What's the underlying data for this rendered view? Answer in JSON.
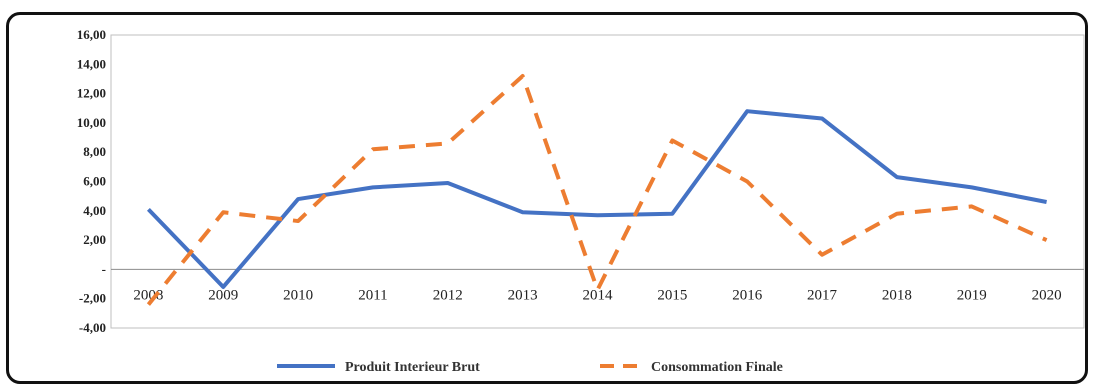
{
  "chart_data": {
    "type": "line",
    "categories": [
      "2008",
      "2009",
      "2010",
      "2011",
      "2012",
      "2013",
      "2014",
      "2015",
      "2016",
      "2017",
      "2018",
      "2019",
      "2020"
    ],
    "y_tick_labels": [
      "16,00",
      "14,00",
      "12,00",
      "10,00",
      "8,00",
      "6,00",
      "4,00",
      "2,00",
      "-",
      "-2,00",
      "-4,00"
    ],
    "ylim": [
      -4,
      16
    ],
    "grid": false,
    "legend_position": "bottom",
    "series": [
      {
        "name": "Produit Interieur Brut",
        "color": "#4472C4",
        "style": "solid",
        "values": [
          4.1,
          -1.2,
          4.8,
          5.6,
          5.9,
          3.9,
          3.7,
          3.8,
          10.8,
          10.3,
          6.3,
          5.6,
          4.6
        ]
      },
      {
        "name": "Consommation Finale",
        "color": "#ED7D31",
        "style": "dashed",
        "values": [
          -2.4,
          3.9,
          3.3,
          8.2,
          8.6,
          13.2,
          -1.4,
          8.8,
          6.0,
          1.0,
          3.8,
          4.3,
          2.0
        ]
      }
    ]
  }
}
